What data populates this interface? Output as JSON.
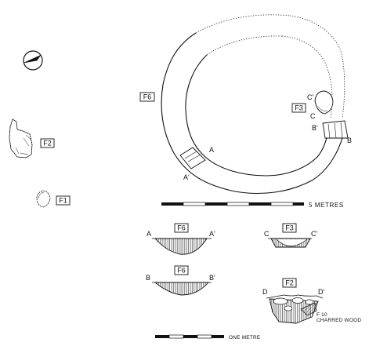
{
  "features": {
    "f6_plan": "F6",
    "f3_plan": "F3",
    "f2_plan": "F2",
    "f1_plan": "F1"
  },
  "section_letters": {
    "a": "A",
    "a1": "A'",
    "b": "B",
    "b1": "B'",
    "c": "C",
    "c1": "C'"
  },
  "scales": {
    "large": "5 METRES",
    "small": "ONE METRE"
  },
  "sections": [
    {
      "id": "f6_aa",
      "label": "F6",
      "left": "A",
      "right": "A'"
    },
    {
      "id": "f3_cc",
      "label": "F3",
      "left": "C",
      "right": "C'"
    },
    {
      "id": "f6_bb",
      "label": "F6",
      "left": "B",
      "right": "B'"
    },
    {
      "id": "f2_dd",
      "label": "F2",
      "left": "D",
      "right": "D'"
    }
  ],
  "annotation": {
    "f10": "F 10",
    "charred_wood": "CHARRED WOOD"
  }
}
